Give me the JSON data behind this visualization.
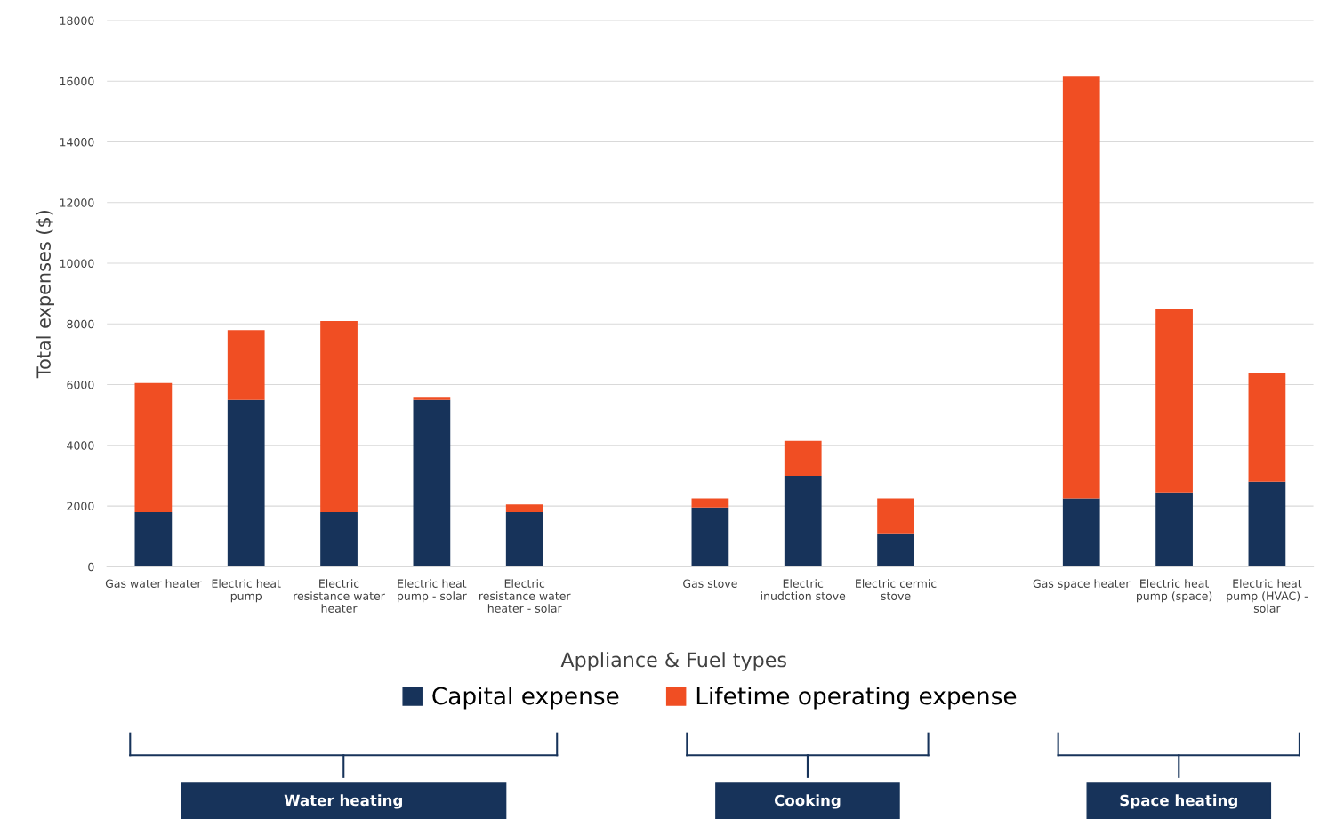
{
  "chart_data": {
    "type": "bar",
    "stacked": true,
    "categories": [
      "Gas water heater",
      "Electric heat\npump",
      "Electric\nresistance water\nheater",
      "Electric heat\npump - solar",
      "Electric\nresistance water\nheater - solar",
      null,
      "Gas stove",
      "Electric\ninudction stove",
      "Electric cermic\nstove",
      null,
      "Gas space heater",
      "Electric heat\npump (space)",
      "Electric heat\npump (HVAC) -\nsolar"
    ],
    "series": [
      {
        "name": "Capital expense",
        "color": "#17335a",
        "values": [
          1800,
          5500,
          1800,
          5500,
          1800,
          null,
          1950,
          3000,
          1100,
          null,
          2250,
          2450,
          2800
        ]
      },
      {
        "name": "Lifetime operating expense",
        "color": "#f04e23",
        "values": [
          4250,
          2300,
          6300,
          70,
          250,
          null,
          300,
          1150,
          1150,
          null,
          13900,
          6050,
          3600
        ]
      }
    ],
    "xlabel": "Appliance & Fuel types",
    "ylabel": "Total expenses ($)",
    "ylim": [
      0,
      18000
    ],
    "yticks": [
      0,
      2000,
      4000,
      6000,
      8000,
      10000,
      12000,
      14000,
      16000,
      18000
    ],
    "grid": "y",
    "legend": "bottom",
    "annotations": [
      "Water heating",
      "Cooking",
      "Space heating"
    ]
  }
}
